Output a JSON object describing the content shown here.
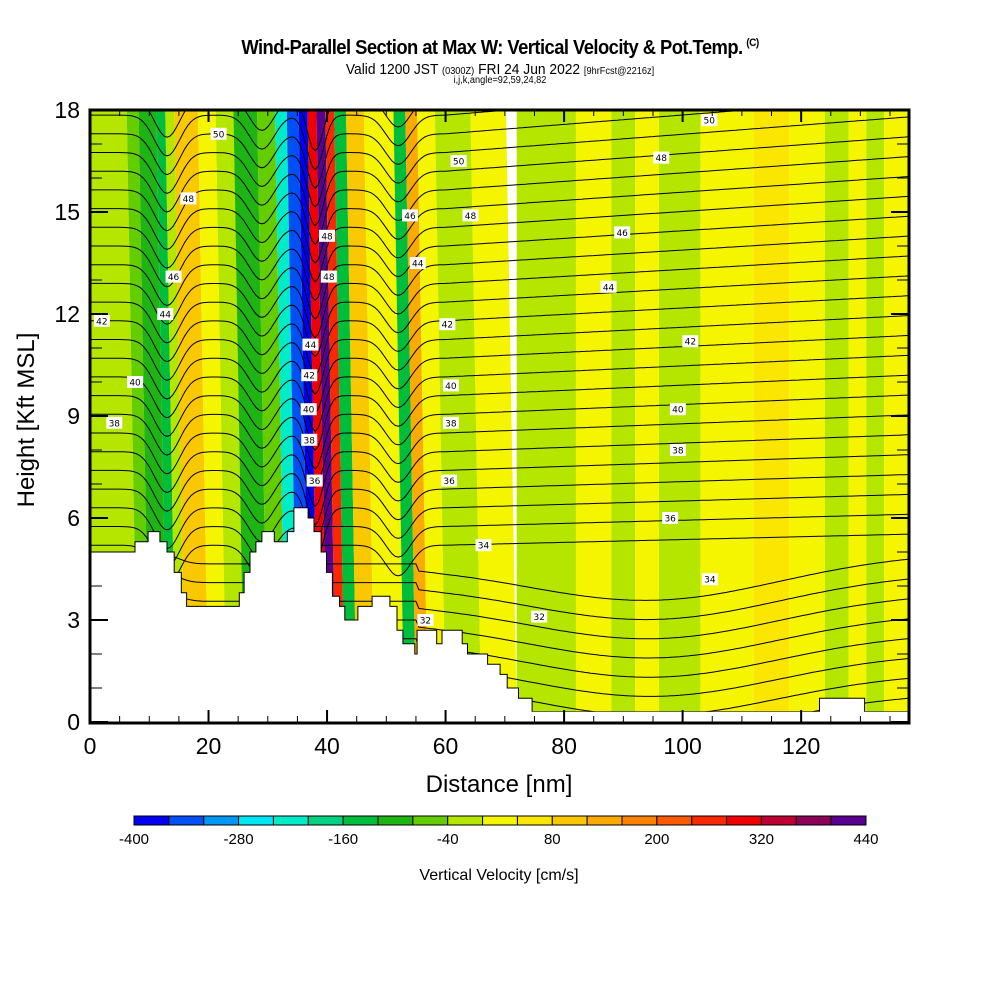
{
  "header": {
    "title": "Wind-Parallel Section at Max W: Vertical Velocity & Pot.Temp.",
    "copyright": "(C)",
    "valid_prefix": "Valid 1200 JST",
    "valid_utc": "(0300Z)",
    "valid_date": "FRI 24 Jun 2022",
    "forecast": "[9hrFcst@2216z]",
    "grid_info": "i,j,k,angle=92,59,24,82"
  },
  "chart_data": {
    "type": "heatmap",
    "title": "Wind-Parallel Section at Max W: Vertical Velocity & Pot.Temp.",
    "xlabel": "Distance [nm]",
    "ylabel": "Height [Kft MSL]",
    "xlim": [
      0,
      138.2
    ],
    "ylim": [
      0,
      18
    ],
    "x_ticks": [
      "0",
      "20",
      "40",
      "60",
      "80",
      "100",
      "120"
    ],
    "x_tick_values": [
      0,
      20,
      40,
      60,
      80,
      100,
      120
    ],
    "y_ticks": [
      "0",
      "3",
      "6",
      "9",
      "12",
      "15",
      "18"
    ],
    "y_tick_values": [
      0,
      3,
      6,
      9,
      12,
      15,
      18
    ],
    "colorbar": {
      "title": "Vertical Velocity [cm/s]",
      "tick_labels": [
        "-400",
        "-280",
        "-160",
        "-40",
        "80",
        "200",
        "320",
        "440"
      ],
      "tick_values": [
        -400,
        -280,
        -160,
        -40,
        80,
        200,
        320,
        440
      ],
      "levels": [
        -400,
        -360,
        -320,
        -280,
        -240,
        -200,
        -160,
        -120,
        -80,
        -40,
        0,
        40,
        80,
        120,
        160,
        200,
        240,
        280,
        320,
        360,
        400,
        440
      ],
      "colors": [
        "#0000f0",
        "#0050f5",
        "#0096f5",
        "#00e6f5",
        "#00ebc8",
        "#00d282",
        "#00be3c",
        "#1eb414",
        "#64cd00",
        "#b4e600",
        "#f5f500",
        "#fae600",
        "#fac800",
        "#faaa00",
        "#fa8200",
        "#fa5a00",
        "#fa2800",
        "#f00000",
        "#be0032",
        "#8c005a",
        "#5a0091"
      ]
    },
    "terrain_kft": {
      "x_nm": [
        0,
        7.6,
        7.6,
        9.8,
        9.8,
        11.8,
        11.8,
        13.0,
        13.0,
        14.2,
        14.2,
        15.4,
        15.4,
        16.3,
        16.3,
        25.2,
        25.2,
        26.0,
        26.0,
        27.0,
        27.0,
        28.0,
        28.0,
        29.0,
        29.0,
        31.1,
        31.1,
        33.3,
        33.3,
        34.4,
        34.4,
        36.8,
        36.8,
        37.8,
        37.8,
        39.0,
        39.0,
        39.9,
        39.9,
        40.9,
        40.9,
        42.1,
        42.1,
        43.0,
        43.0,
        45.2,
        45.2,
        47.6,
        47.6,
        50.6,
        50.6,
        51.8,
        51.8,
        52.8,
        52.8,
        54.8,
        54.8,
        55.2,
        55.2,
        58.5,
        58.5,
        59.4,
        59.4,
        62.8,
        62.8,
        63.7,
        63.7,
        67.1,
        67.1,
        69.2,
        69.2,
        70.4,
        70.4,
        72.3,
        72.3,
        74.6,
        74.6,
        123.1,
        123.1,
        130.7,
        130.7,
        138.2
      ],
      "height": [
        5.0,
        5.0,
        5.3,
        5.3,
        5.6,
        5.6,
        5.3,
        5.3,
        5.0,
        5.0,
        4.4,
        4.4,
        3.8,
        3.8,
        3.4,
        3.4,
        3.8,
        3.8,
        4.4,
        4.4,
        5.0,
        5.0,
        5.3,
        5.3,
        5.6,
        5.6,
        5.3,
        5.3,
        5.6,
        5.6,
        6.3,
        6.3,
        6.0,
        6.0,
        5.6,
        5.6,
        5.0,
        5.0,
        4.4,
        4.4,
        3.7,
        3.7,
        3.4,
        3.4,
        3.0,
        3.0,
        3.4,
        3.4,
        3.7,
        3.7,
        3.4,
        3.4,
        2.7,
        2.7,
        2.3,
        2.3,
        2.0,
        2.0,
        2.7,
        2.7,
        2.3,
        2.3,
        2.7,
        2.7,
        2.3,
        2.3,
        2.0,
        2.0,
        1.7,
        1.7,
        1.4,
        1.4,
        1.0,
        1.0,
        0.7,
        0.7,
        0.3,
        0.3,
        0.7,
        0.7,
        0.3,
        0.3
      ]
    },
    "velocity_bands": [
      {
        "x_range": [
          0,
          8
        ],
        "level_index": 9
      },
      {
        "x_range": [
          8,
          10
        ],
        "level_index": 8
      },
      {
        "x_range": [
          10,
          13
        ],
        "level_index": 7
      },
      {
        "x_range": [
          13,
          14.5
        ],
        "level_index": 6
      },
      {
        "x_range": [
          14.5,
          16
        ],
        "level_index": 9
      },
      {
        "x_range": [
          16,
          20
        ],
        "level_index": 12
      },
      {
        "x_range": [
          20,
          23
        ],
        "level_index": 10
      },
      {
        "x_range": [
          23,
          26
        ],
        "level_index": 9
      },
      {
        "x_range": [
          26,
          30
        ],
        "level_index": 7
      },
      {
        "x_range": [
          30,
          33
        ],
        "level_index": 8
      },
      {
        "x_range": [
          33,
          35
        ],
        "level_index": 4
      },
      {
        "x_range": [
          35,
          37
        ],
        "level_index": 1
      },
      {
        "x_range": [
          37,
          38.5
        ],
        "level_index": 0
      },
      {
        "x_range": [
          38.5,
          40
        ],
        "level_index": 17
      },
      {
        "x_range": [
          40,
          41.5
        ],
        "level_index": 20
      },
      {
        "x_range": [
          41.5,
          43
        ],
        "level_index": 16
      },
      {
        "x_range": [
          43,
          45
        ],
        "level_index": 6
      },
      {
        "x_range": [
          45,
          48
        ],
        "level_index": 12
      },
      {
        "x_range": [
          48,
          53
        ],
        "level_index": 10
      },
      {
        "x_range": [
          53,
          55
        ],
        "level_index": 6
      },
      {
        "x_range": [
          55,
          57
        ],
        "level_index": 13
      },
      {
        "x_range": [
          57,
          60
        ],
        "level_index": 10
      },
      {
        "x_range": [
          60,
          66
        ],
        "level_index": 9
      },
      {
        "x_range": [
          66,
          72
        ],
        "level_index": 10
      },
      {
        "x_range": [
          72,
          82
        ],
        "level_index": 9
      },
      {
        "x_range": [
          82,
          88
        ],
        "level_index": 10
      },
      {
        "x_range": [
          88,
          92
        ],
        "level_index": 9
      },
      {
        "x_range": [
          92,
          96
        ],
        "level_index": 10
      },
      {
        "x_range": [
          96,
          103
        ],
        "level_index": 9
      },
      {
        "x_range": [
          103,
          112
        ],
        "level_index": 10
      },
      {
        "x_range": [
          112,
          118
        ],
        "level_index": 11
      },
      {
        "x_range": [
          118,
          124
        ],
        "level_index": 10
      },
      {
        "x_range": [
          124,
          128
        ],
        "level_index": 9
      },
      {
        "x_range": [
          128,
          131
        ],
        "level_index": 10
      },
      {
        "x_range": [
          131,
          134
        ],
        "level_index": 9
      },
      {
        "x_range": [
          134,
          138.2
        ],
        "level_index": 10
      }
    ],
    "contour_labels": [
      {
        "text": "50",
        "x": 21.7,
        "y": 17.3
      },
      {
        "text": "48",
        "x": 16.6,
        "y": 15.4
      },
      {
        "text": "46",
        "x": 14.1,
        "y": 13.1
      },
      {
        "text": "44",
        "x": 12.7,
        "y": 12.0
      },
      {
        "text": "42",
        "x": 2.0,
        "y": 11.8
      },
      {
        "text": "40",
        "x": 7.6,
        "y": 10.0
      },
      {
        "text": "38",
        "x": 4.1,
        "y": 8.8
      },
      {
        "text": "48",
        "x": 40.0,
        "y": 14.3
      },
      {
        "text": "48",
        "x": 40.3,
        "y": 13.1
      },
      {
        "text": "44",
        "x": 37.2,
        "y": 11.1
      },
      {
        "text": "42",
        "x": 37.0,
        "y": 10.2
      },
      {
        "text": "40",
        "x": 36.9,
        "y": 9.2
      },
      {
        "text": "38",
        "x": 37.0,
        "y": 8.3
      },
      {
        "text": "36",
        "x": 37.9,
        "y": 7.1
      },
      {
        "text": "50",
        "x": 62.2,
        "y": 16.5
      },
      {
        "text": "46",
        "x": 54.0,
        "y": 14.9
      },
      {
        "text": "48",
        "x": 64.2,
        "y": 14.9
      },
      {
        "text": "44",
        "x": 55.3,
        "y": 13.5
      },
      {
        "text": "42",
        "x": 60.3,
        "y": 11.7
      },
      {
        "text": "40",
        "x": 60.9,
        "y": 9.9
      },
      {
        "text": "38",
        "x": 60.9,
        "y": 8.8
      },
      {
        "text": "36",
        "x": 60.6,
        "y": 7.1
      },
      {
        "text": "34",
        "x": 66.4,
        "y": 5.2
      },
      {
        "text": "32",
        "x": 56.6,
        "y": 3.0
      },
      {
        "text": "32",
        "x": 75.8,
        "y": 3.1
      },
      {
        "text": "50",
        "x": 104.5,
        "y": 17.7
      },
      {
        "text": "48",
        "x": 96.4,
        "y": 16.6
      },
      {
        "text": "46",
        "x": 89.8,
        "y": 14.4
      },
      {
        "text": "44",
        "x": 87.5,
        "y": 12.8
      },
      {
        "text": "42",
        "x": 101.3,
        "y": 11.2
      },
      {
        "text": "40",
        "x": 99.2,
        "y": 9.2
      },
      {
        "text": "38",
        "x": 99.2,
        "y": 8.0
      },
      {
        "text": "36",
        "x": 97.9,
        "y": 6.0
      },
      {
        "text": "34",
        "x": 104.6,
        "y": 4.2
      }
    ]
  }
}
